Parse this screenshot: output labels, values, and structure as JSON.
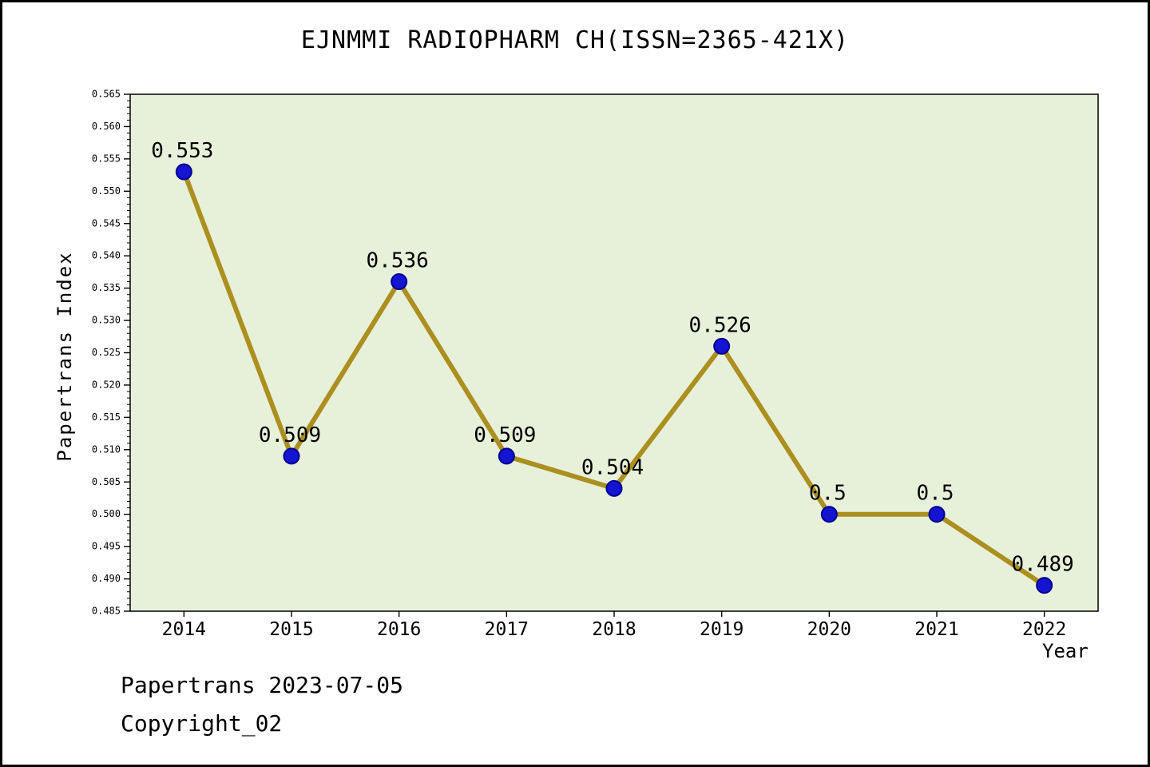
{
  "title": "EJNMMI RADIOPHARM CH(ISSN=2365-421X)",
  "footer": {
    "line1": "Papertrans 2023-07-05",
    "line2": "Copyright_02"
  },
  "chart_data": {
    "type": "line",
    "title": "EJNMMI RADIOPHARM CH(ISSN=2365-421X)",
    "xlabel": "Year",
    "ylabel": "Papertrans Index",
    "categories": [
      2014,
      2015,
      2016,
      2017,
      2018,
      2019,
      2020,
      2021,
      2022
    ],
    "values": [
      0.553,
      0.509,
      0.536,
      0.509,
      0.504,
      0.526,
      0.5,
      0.5,
      0.489
    ],
    "point_labels": [
      "0.553",
      "0.509",
      "0.536",
      "0.509",
      "0.504",
      "0.526",
      "0.5",
      "0.5",
      "0.489"
    ],
    "ylim": [
      0.485,
      0.565
    ],
    "y_major_step": 0.005,
    "y_minor_step": 0.001,
    "grid": false,
    "legend": "none",
    "colors": {
      "line": "#ab8f1f",
      "marker_fill": "#1414d2",
      "marker_edge": "#000090",
      "plot_bg": "#e7f0d9",
      "page_bg": "#ffffff",
      "axis": "#000000"
    }
  }
}
